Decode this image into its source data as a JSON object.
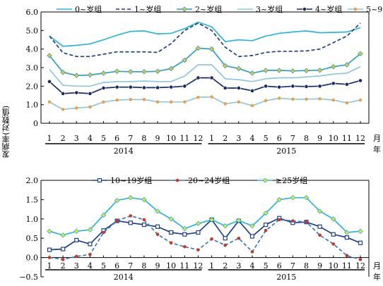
{
  "figure": {
    "ylabel": "发病率(对数值)",
    "xlabel_suffix": "月年",
    "months": [
      "1",
      "2",
      "3",
      "4",
      "5",
      "6",
      "7",
      "8",
      "9",
      "10",
      "11",
      "12",
      "1",
      "2",
      "3",
      "4",
      "5",
      "6",
      "7",
      "8",
      "9",
      "10",
      "11",
      "12"
    ],
    "years": [
      "2014",
      "2015"
    ]
  },
  "chart_data": [
    {
      "type": "line",
      "ylim": [
        0,
        6
      ],
      "yticks": [
        "0",
        "1.0",
        "2.0",
        "3.0",
        "4.0",
        "5.0",
        "6.0"
      ],
      "legend_position": "top",
      "x": [
        1,
        2,
        3,
        4,
        5,
        6,
        7,
        8,
        9,
        10,
        11,
        12,
        1,
        2,
        3,
        4,
        5,
        6,
        7,
        8,
        9,
        10,
        11,
        12
      ],
      "series": [
        {
          "name": "0~岁组",
          "color": "#2eb4d6",
          "dash": "",
          "marker": "none",
          "values": [
            4.7,
            4.15,
            4.2,
            4.28,
            4.5,
            4.75,
            4.95,
            4.98,
            4.82,
            4.85,
            5.1,
            5.45,
            5.2,
            4.4,
            4.5,
            4.45,
            4.7,
            4.85,
            4.92,
            4.98,
            4.88,
            4.9,
            4.92,
            5.15
          ]
        },
        {
          "name": "1~岁组",
          "color": "#1f3f8a",
          "dash": "5,3",
          "marker": "none",
          "values": [
            4.7,
            3.8,
            3.6,
            3.6,
            3.72,
            3.85,
            3.85,
            3.85,
            3.82,
            4.3,
            5.0,
            5.4,
            5.0,
            4.1,
            3.6,
            3.65,
            3.82,
            3.88,
            3.88,
            3.9,
            4.0,
            4.35,
            4.7,
            5.4
          ]
        },
        {
          "name": "2~岁组",
          "color": "#2e9fbf",
          "dash": "",
          "marker": "diamond",
          "marker_fill": "#e8c53a",
          "values": [
            3.65,
            2.75,
            2.58,
            2.6,
            2.7,
            2.8,
            2.78,
            2.78,
            2.8,
            2.95,
            3.4,
            4.05,
            4.0,
            3.1,
            2.95,
            2.7,
            2.85,
            2.85,
            2.82,
            2.84,
            2.86,
            3.05,
            3.15,
            3.75
          ]
        },
        {
          "name": "3~岁组",
          "color": "#8fc6e0",
          "dash": "",
          "marker": "none",
          "values": [
            2.9,
            2.05,
            2.0,
            2.0,
            2.2,
            2.25,
            2.25,
            2.28,
            2.25,
            2.25,
            2.55,
            3.15,
            3.15,
            2.4,
            2.35,
            2.25,
            2.4,
            2.45,
            2.45,
            2.5,
            2.55,
            2.65,
            2.7,
            3.05
          ]
        },
        {
          "name": "4~岁组",
          "color": "#1a2a5e",
          "dash": "",
          "marker": "star",
          "marker_fill": "#1a2a5e",
          "values": [
            2.25,
            1.6,
            1.65,
            1.6,
            1.9,
            1.95,
            1.95,
            1.92,
            1.92,
            1.95,
            2.0,
            2.45,
            2.45,
            1.9,
            1.9,
            1.75,
            2.0,
            1.95,
            2.0,
            1.98,
            2.0,
            2.15,
            2.1,
            2.3
          ]
        },
        {
          "name": "5~9岁组",
          "color": "#e8a24a",
          "dash": "",
          "marker": "dot",
          "marker_fill": "#e8a24a",
          "line_color": "#8fc6e0",
          "values": [
            1.15,
            0.75,
            0.82,
            0.88,
            1.15,
            1.25,
            1.28,
            1.28,
            1.15,
            1.15,
            1.15,
            1.4,
            1.42,
            1.05,
            1.15,
            0.95,
            1.22,
            1.35,
            1.3,
            1.3,
            1.32,
            1.25,
            1.1,
            1.25
          ]
        }
      ]
    },
    {
      "type": "line",
      "ylim": [
        -0.5,
        2.0
      ],
      "yticks": [
        "−0.5",
        "0.0",
        "0.5",
        "1.0",
        "1.5",
        "2.0"
      ],
      "legend_position": "top",
      "x": [
        1,
        2,
        3,
        4,
        5,
        6,
        7,
        8,
        9,
        10,
        11,
        12,
        1,
        2,
        3,
        4,
        5,
        6,
        7,
        8,
        9,
        10,
        11,
        12
      ],
      "series": [
        {
          "name": "10~19岁组",
          "color": "#1f3f8a",
          "dash": "",
          "marker": "square",
          "marker_fill": "#ffffff",
          "values": [
            0.2,
            0.22,
            0.45,
            0.35,
            0.7,
            0.95,
            0.9,
            0.85,
            0.8,
            0.65,
            0.6,
            0.65,
            0.98,
            0.5,
            0.95,
            0.55,
            0.85,
            1.02,
            0.9,
            0.92,
            0.8,
            0.6,
            0.52,
            0.38
          ]
        },
        {
          "name": "20~24岁组",
          "color": "#3a78c9",
          "dash": "5,3",
          "marker": "dot",
          "marker_fill": "#c0392b",
          "values": [
            0.0,
            -0.05,
            0.03,
            0.08,
            0.65,
            0.95,
            1.08,
            0.98,
            0.6,
            0.38,
            0.28,
            0.2,
            0.48,
            0.32,
            0.5,
            0.15,
            0.7,
            0.98,
            0.95,
            0.92,
            0.58,
            0.35,
            0.05,
            -0.05
          ]
        },
        {
          "name": "≥25岁组",
          "color": "#2eb4d6",
          "dash": "",
          "marker": "diamond",
          "marker_fill": "#e8e13a",
          "values": [
            0.68,
            0.58,
            0.68,
            0.72,
            1.1,
            1.48,
            1.55,
            1.5,
            1.2,
            1.0,
            0.75,
            0.88,
            0.98,
            0.82,
            0.96,
            0.82,
            1.15,
            1.5,
            1.55,
            1.55,
            1.2,
            1.0,
            0.65,
            0.68
          ]
        }
      ]
    }
  ]
}
